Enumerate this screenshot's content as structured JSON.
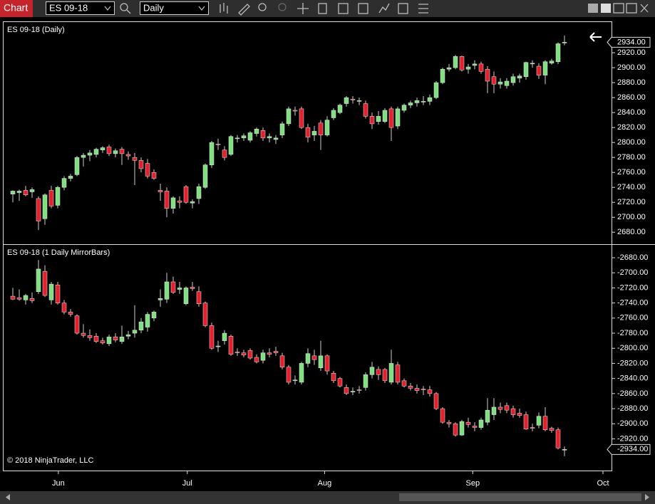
{
  "toolbar": {
    "title": "Chart",
    "instrument": "ES 09-18",
    "period": "Daily"
  },
  "footer": "© 2018 NinjaTrader, LLC",
  "chart_data": [
    {
      "type": "candlestick",
      "title": "ES 09-18 (Daily)",
      "up_color": "#7ee07e",
      "down_color": "#e3202b",
      "ylim": [
        2665,
        2961
      ],
      "yticks": [
        {
          "value": 2680,
          "label": "2680.00"
        },
        {
          "value": 2700,
          "label": "2700.00"
        },
        {
          "value": 2720,
          "label": "2720.00"
        },
        {
          "value": 2740,
          "label": "2740.00"
        },
        {
          "value": 2760,
          "label": "2760.00"
        },
        {
          "value": 2780,
          "label": "2780.00"
        },
        {
          "value": 2800,
          "label": "2800.00"
        },
        {
          "value": 2820,
          "label": "2820.00"
        },
        {
          "value": 2840,
          "label": "2840.00"
        },
        {
          "value": 2860,
          "label": "2860.00"
        },
        {
          "value": 2880,
          "label": "2880.00"
        },
        {
          "value": 2900,
          "label": "2900.00"
        },
        {
          "value": 2920,
          "label": "2920.00"
        }
      ],
      "last_price": {
        "value": 2934,
        "label": "2934.00"
      },
      "open": [
        2731,
        2733,
        2736,
        2734,
        2725,
        2698,
        2736,
        2716,
        2740,
        2752,
        2757,
        2780,
        2783,
        2784,
        2790,
        2794,
        2785,
        2791,
        2784,
        2780,
        2776,
        2772,
        2760,
        2736,
        2735,
        2712,
        2722,
        2741,
        2719,
        2725,
        2740,
        2770,
        2798,
        2790,
        2784,
        2805,
        2806,
        2803,
        2812,
        2816,
        2806,
        2804,
        2810,
        2825,
        2843,
        2845,
        2820,
        2810,
        2826,
        2810,
        2833,
        2840,
        2852,
        2858,
        2855,
        2852,
        2835,
        2828,
        2828,
        2845,
        2822,
        2843,
        2850,
        2853,
        2854,
        2855,
        2860,
        2880,
        2898,
        2900,
        2915,
        2898,
        2903,
        2905,
        2898,
        2888,
        2878,
        2876,
        2880,
        2886,
        2888,
        2905,
        2902,
        2890,
        2906,
        2908,
        2934
      ],
      "high": [
        2736,
        2737,
        2742,
        2740,
        2728,
        2732,
        2742,
        2742,
        2755,
        2758,
        2782,
        2786,
        2790,
        2793,
        2795,
        2797,
        2792,
        2794,
        2788,
        2786,
        2780,
        2778,
        2764,
        2745,
        2740,
        2728,
        2728,
        2743,
        2724,
        2745,
        2772,
        2802,
        2805,
        2795,
        2810,
        2810,
        2812,
        2815,
        2820,
        2820,
        2812,
        2810,
        2828,
        2848,
        2848,
        2848,
        2825,
        2822,
        2830,
        2835,
        2846,
        2852,
        2862,
        2862,
        2860,
        2856,
        2840,
        2842,
        2846,
        2848,
        2848,
        2852,
        2856,
        2860,
        2862,
        2864,
        2882,
        2900,
        2905,
        2917,
        2916,
        2905,
        2910,
        2908,
        2902,
        2895,
        2886,
        2886,
        2892,
        2892,
        2908,
        2910,
        2906,
        2910,
        2912,
        2934,
        2943
      ],
      "low": [
        2720,
        2722,
        2728,
        2726,
        2683,
        2690,
        2712,
        2712,
        2736,
        2748,
        2755,
        2768,
        2775,
        2780,
        2786,
        2782,
        2780,
        2770,
        2777,
        2743,
        2760,
        2752,
        2750,
        2722,
        2700,
        2705,
        2712,
        2718,
        2712,
        2718,
        2738,
        2766,
        2790,
        2776,
        2782,
        2800,
        2802,
        2800,
        2808,
        2802,
        2800,
        2798,
        2806,
        2822,
        2836,
        2818,
        2800,
        2802,
        2790,
        2808,
        2830,
        2838,
        2848,
        2852,
        2850,
        2832,
        2818,
        2824,
        2826,
        2802,
        2818,
        2840,
        2846,
        2848,
        2850,
        2850,
        2858,
        2878,
        2895,
        2898,
        2895,
        2892,
        2898,
        2892,
        2866,
        2866,
        2872,
        2872,
        2876,
        2880,
        2884,
        2900,
        2885,
        2878,
        2904,
        2905,
        2930
      ],
      "close": [
        2735,
        2735,
        2730,
        2737,
        2695,
        2730,
        2715,
        2740,
        2752,
        2755,
        2780,
        2783,
        2786,
        2791,
        2793,
        2785,
        2789,
        2785,
        2782,
        2776,
        2765,
        2755,
        2752,
        2734,
        2712,
        2726,
        2720,
        2720,
        2721,
        2741,
        2770,
        2800,
        2797,
        2780,
        2808,
        2806,
        2809,
        2813,
        2818,
        2806,
        2808,
        2806,
        2825,
        2845,
        2842,
        2820,
        2807,
        2815,
        2810,
        2830,
        2843,
        2850,
        2860,
        2857,
        2856,
        2835,
        2825,
        2835,
        2843,
        2820,
        2845,
        2850,
        2853,
        2856,
        2855,
        2860,
        2880,
        2898,
        2900,
        2915,
        2897,
        2901,
        2905,
        2895,
        2882,
        2878,
        2881,
        2882,
        2888,
        2889,
        2907,
        2906,
        2890,
        2908,
        2909,
        2932,
        2934
      ]
    },
    {
      "type": "candlestick",
      "title": "ES 09-18 (1 Daily MirrorBars)",
      "up_color": "#7ee07e",
      "down_color": "#e3202b",
      "ylim": [
        -2962,
        -2663
      ],
      "yticks": [
        {
          "value": -2680,
          "label": "-2680.00"
        },
        {
          "value": -2700,
          "label": "-2700.00"
        },
        {
          "value": -2720,
          "label": "-2720.00"
        },
        {
          "value": -2740,
          "label": "-2740.00"
        },
        {
          "value": -2760,
          "label": "-2760.00"
        },
        {
          "value": -2780,
          "label": "-2780.00"
        },
        {
          "value": -2800,
          "label": "-2800.00"
        },
        {
          "value": -2820,
          "label": "-2820.00"
        },
        {
          "value": -2840,
          "label": "-2840.00"
        },
        {
          "value": -2860,
          "label": "-2860.00"
        },
        {
          "value": -2880,
          "label": "-2880.00"
        },
        {
          "value": -2900,
          "label": "-2900.00"
        },
        {
          "value": -2920,
          "label": "-2920.00"
        }
      ],
      "last_price": {
        "value": -2934,
        "label": "-2934.00"
      },
      "xticks": [
        {
          "value": 7.1,
          "label": "Jun"
        },
        {
          "value": 27.2,
          "label": "Jul"
        },
        {
          "value": 48.6,
          "label": "Aug"
        },
        {
          "value": 71.7,
          "label": "Sep"
        },
        {
          "value": 92,
          "label": "Oct"
        }
      ],
      "open": [
        -2731,
        -2733,
        -2736,
        -2734,
        -2725,
        -2698,
        -2736,
        -2716,
        -2740,
        -2752,
        -2757,
        -2780,
        -2783,
        -2784,
        -2790,
        -2794,
        -2785,
        -2791,
        -2784,
        -2780,
        -2776,
        -2772,
        -2760,
        -2736,
        -2735,
        -2712,
        -2722,
        -2741,
        -2719,
        -2725,
        -2740,
        -2770,
        -2798,
        -2790,
        -2784,
        -2805,
        -2806,
        -2803,
        -2812,
        -2816,
        -2806,
        -2804,
        -2810,
        -2825,
        -2843,
        -2845,
        -2820,
        -2810,
        -2826,
        -2810,
        -2833,
        -2840,
        -2852,
        -2858,
        -2855,
        -2852,
        -2835,
        -2828,
        -2828,
        -2845,
        -2822,
        -2843,
        -2850,
        -2853,
        -2854,
        -2855,
        -2860,
        -2880,
        -2898,
        -2900,
        -2915,
        -2898,
        -2903,
        -2905,
        -2898,
        -2888,
        -2878,
        -2876,
        -2880,
        -2886,
        -2888,
        -2905,
        -2902,
        -2890,
        -2906,
        -2908,
        -2934
      ],
      "high": [
        -2720,
        -2722,
        -2728,
        -2726,
        -2683,
        -2690,
        -2712,
        -2712,
        -2736,
        -2748,
        -2755,
        -2768,
        -2775,
        -2780,
        -2786,
        -2782,
        -2780,
        -2770,
        -2777,
        -2743,
        -2760,
        -2752,
        -2750,
        -2722,
        -2700,
        -2705,
        -2712,
        -2718,
        -2712,
        -2718,
        -2738,
        -2766,
        -2790,
        -2776,
        -2782,
        -2800,
        -2802,
        -2800,
        -2808,
        -2802,
        -2800,
        -2798,
        -2806,
        -2822,
        -2836,
        -2818,
        -2800,
        -2802,
        -2790,
        -2808,
        -2830,
        -2838,
        -2848,
        -2852,
        -2850,
        -2832,
        -2818,
        -2824,
        -2826,
        -2802,
        -2818,
        -2840,
        -2846,
        -2848,
        -2850,
        -2850,
        -2858,
        -2878,
        -2895,
        -2898,
        -2895,
        -2892,
        -2898,
        -2892,
        -2866,
        -2866,
        -2872,
        -2872,
        -2876,
        -2880,
        -2884,
        -2900,
        -2885,
        -2878,
        -2904,
        -2905,
        -2930
      ],
      "low": [
        -2736,
        -2737,
        -2742,
        -2740,
        -2728,
        -2732,
        -2742,
        -2742,
        -2755,
        -2758,
        -2782,
        -2786,
        -2790,
        -2793,
        -2795,
        -2797,
        -2792,
        -2794,
        -2788,
        -2786,
        -2780,
        -2778,
        -2764,
        -2745,
        -2740,
        -2728,
        -2728,
        -2743,
        -2724,
        -2745,
        -2772,
        -2802,
        -2805,
        -2795,
        -2810,
        -2810,
        -2812,
        -2815,
        -2820,
        -2820,
        -2812,
        -2810,
        -2828,
        -2848,
        -2848,
        -2848,
        -2825,
        -2822,
        -2830,
        -2835,
        -2846,
        -2852,
        -2862,
        -2862,
        -2860,
        -2856,
        -2840,
        -2842,
        -2846,
        -2848,
        -2848,
        -2852,
        -2856,
        -2860,
        -2862,
        -2864,
        -2882,
        -2900,
        -2905,
        -2917,
        -2916,
        -2905,
        -2910,
        -2908,
        -2902,
        -2895,
        -2886,
        -2886,
        -2892,
        -2892,
        -2908,
        -2910,
        -2906,
        -2910,
        -2912,
        -2934,
        -2943
      ],
      "close": [
        -2735,
        -2735,
        -2730,
        -2737,
        -2695,
        -2730,
        -2715,
        -2740,
        -2752,
        -2755,
        -2780,
        -2783,
        -2786,
        -2791,
        -2793,
        -2785,
        -2789,
        -2785,
        -2782,
        -2776,
        -2765,
        -2755,
        -2752,
        -2734,
        -2712,
        -2726,
        -2720,
        -2720,
        -2721,
        -2741,
        -2770,
        -2800,
        -2797,
        -2780,
        -2808,
        -2806,
        -2809,
        -2813,
        -2818,
        -2806,
        -2808,
        -2806,
        -2825,
        -2845,
        -2842,
        -2820,
        -2807,
        -2815,
        -2810,
        -2830,
        -2843,
        -2850,
        -2860,
        -2857,
        -2856,
        -2835,
        -2825,
        -2835,
        -2843,
        -2820,
        -2845,
        -2850,
        -2853,
        -2856,
        -2855,
        -2860,
        -2880,
        -2898,
        -2900,
        -2915,
        -2897,
        -2901,
        -2905,
        -2895,
        -2882,
        -2878,
        -2881,
        -2882,
        -2888,
        -2889,
        -2907,
        -2906,
        -2890,
        -2908,
        -2909,
        -2932,
        -2934
      ]
    }
  ]
}
